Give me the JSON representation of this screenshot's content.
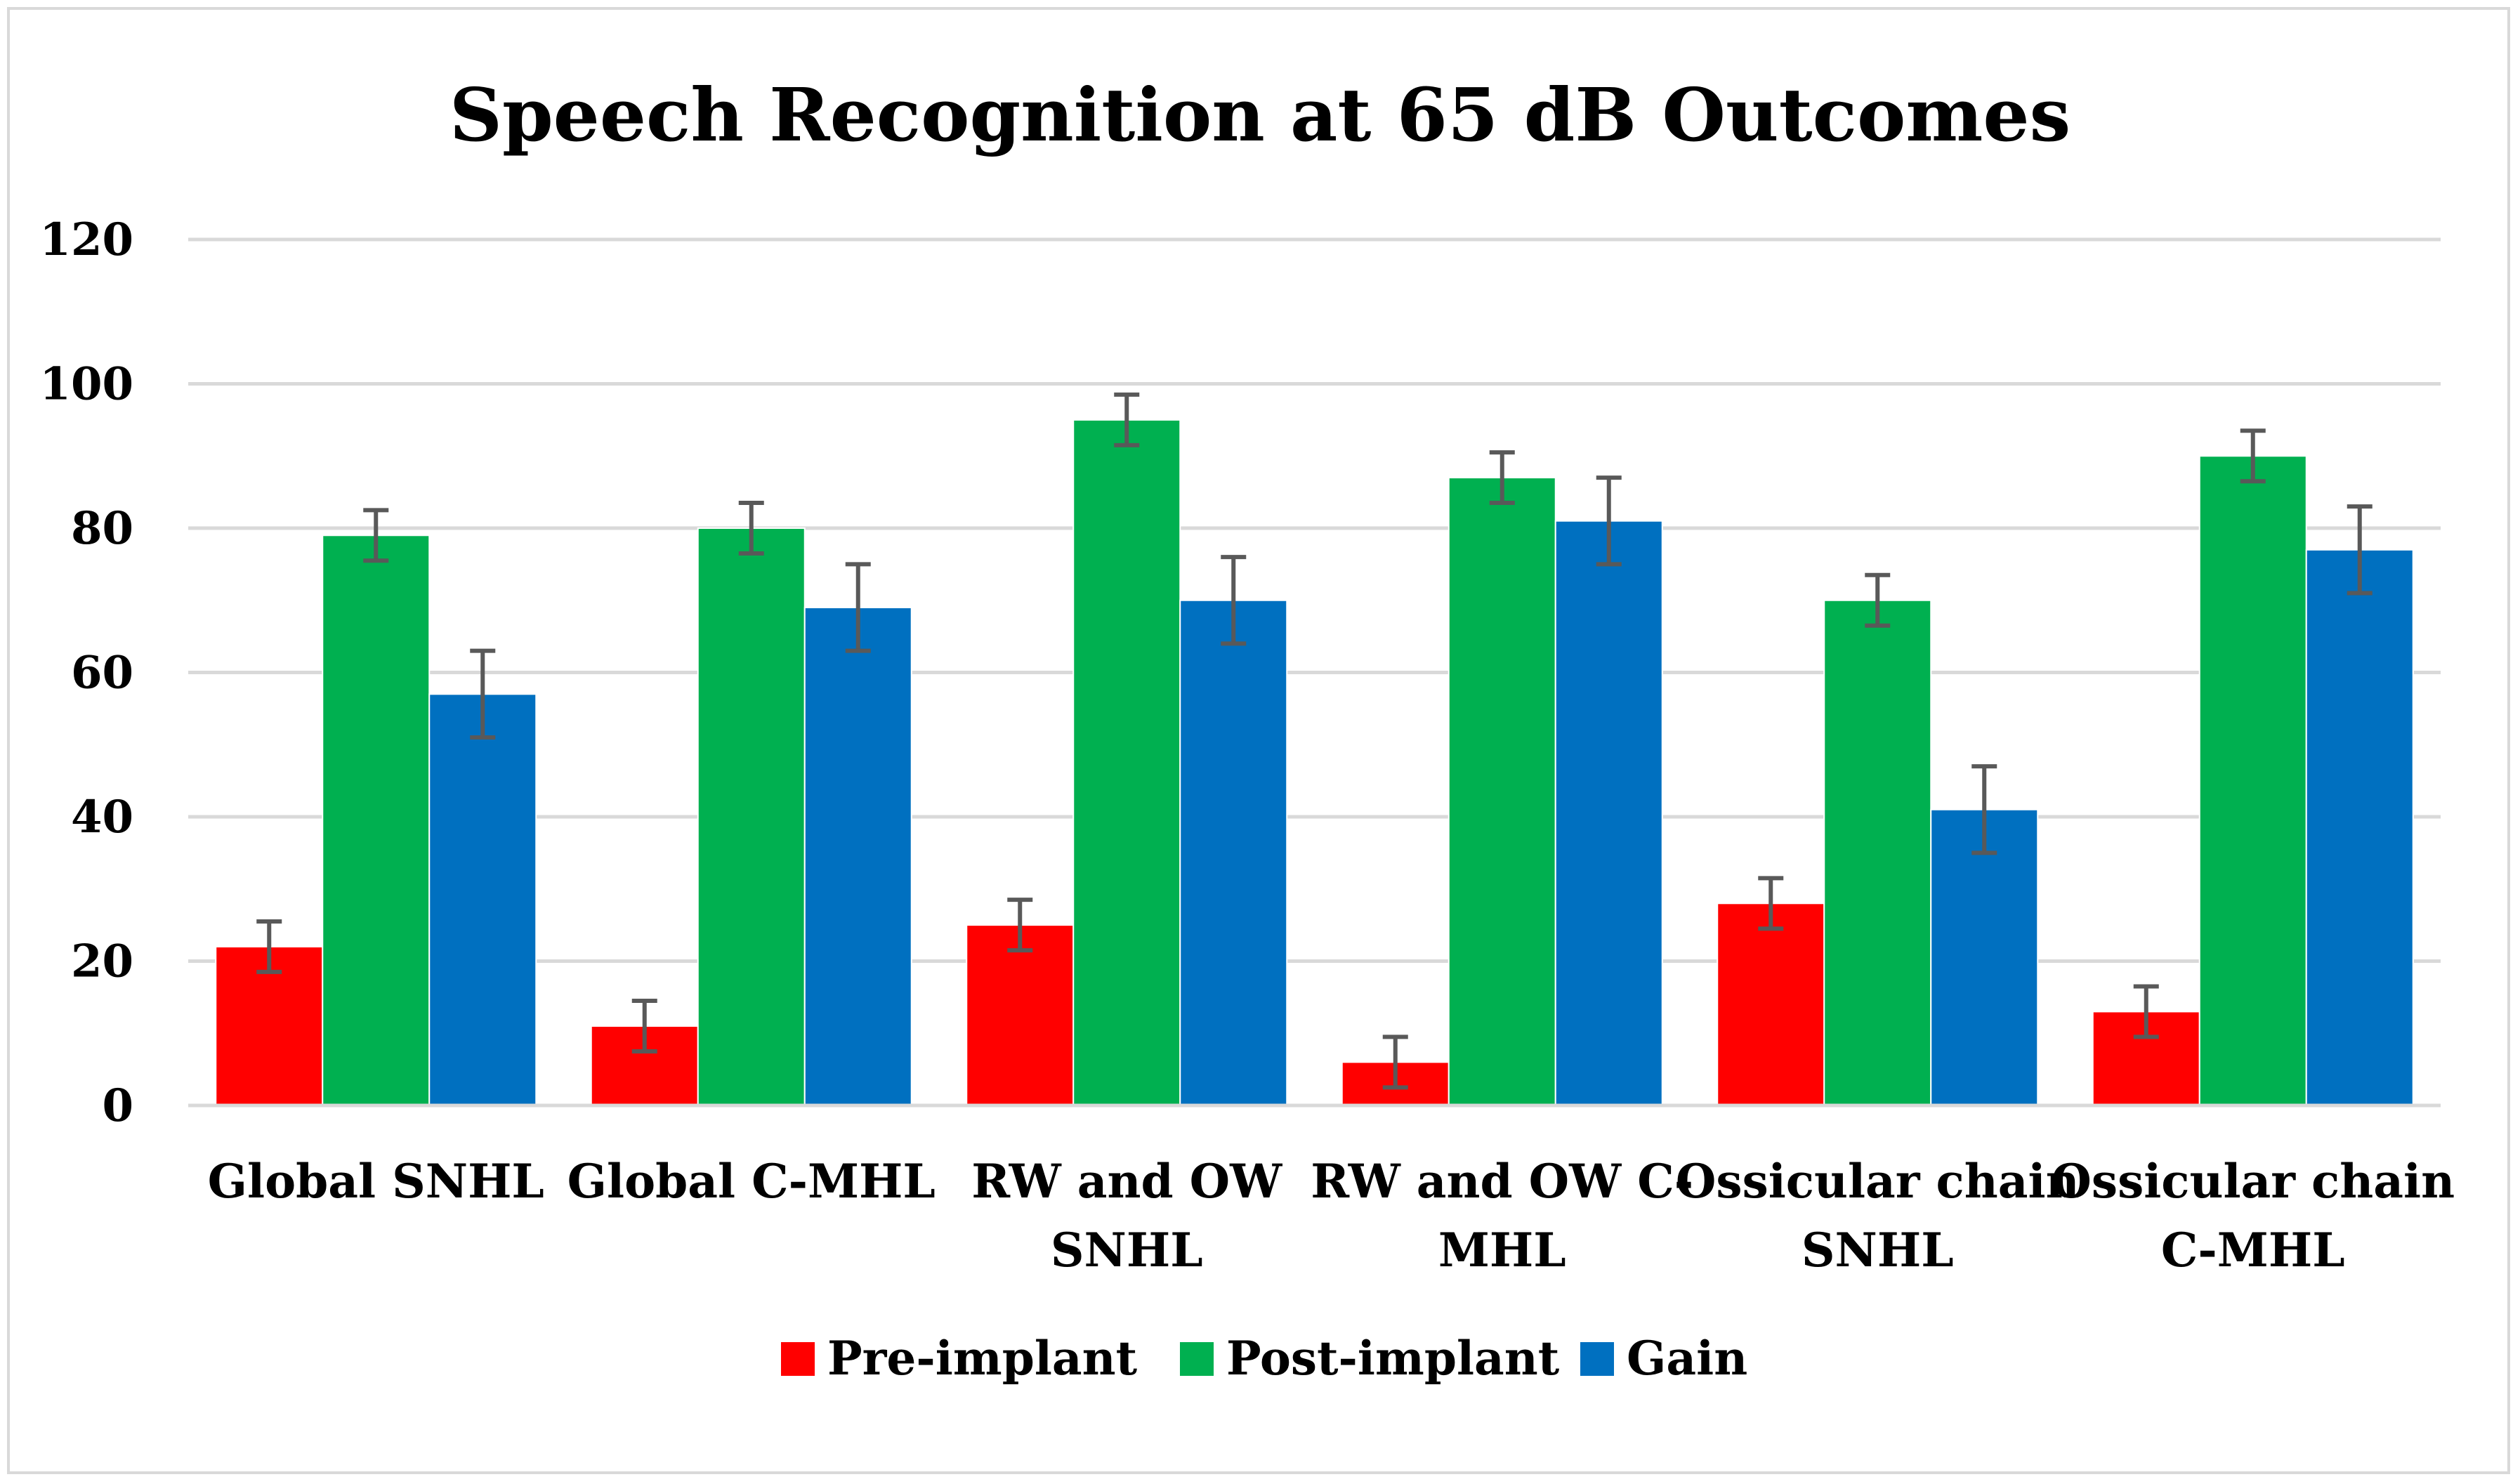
{
  "chart_data": {
    "type": "bar",
    "title": "Speech Recognition at 65 dB Outcomes",
    "xlabel": "",
    "ylabel": "",
    "ylim": [
      0,
      120
    ],
    "yticks": [
      0,
      20,
      40,
      60,
      80,
      100,
      120
    ],
    "grid": true,
    "legend_position": "bottom",
    "categories": [
      [
        "Global SNHL"
      ],
      [
        "Global C-MHL"
      ],
      [
        "RW and OW",
        "SNHL"
      ],
      [
        "RW and OW C-",
        "MHL"
      ],
      [
        "Ossicular chain",
        "SNHL"
      ],
      [
        "Ossicular chain",
        "C-MHL"
      ]
    ],
    "series": [
      {
        "name": "Pre-implant",
        "color": "#ff0000",
        "values": [
          22,
          11,
          25,
          6,
          28,
          13
        ],
        "errors": [
          3.5,
          3.5,
          3.5,
          3.5,
          3.5,
          3.5
        ]
      },
      {
        "name": "Post-implant",
        "color": "#00b050",
        "values": [
          79,
          80,
          95,
          87,
          70,
          90
        ],
        "errors": [
          3.5,
          3.5,
          3.5,
          3.5,
          3.5,
          3.5
        ]
      },
      {
        "name": "Gain",
        "color": "#0070c0",
        "values": [
          57,
          69,
          70,
          81,
          41,
          77
        ],
        "errors": [
          6,
          6,
          6,
          6,
          6,
          6
        ]
      }
    ]
  }
}
